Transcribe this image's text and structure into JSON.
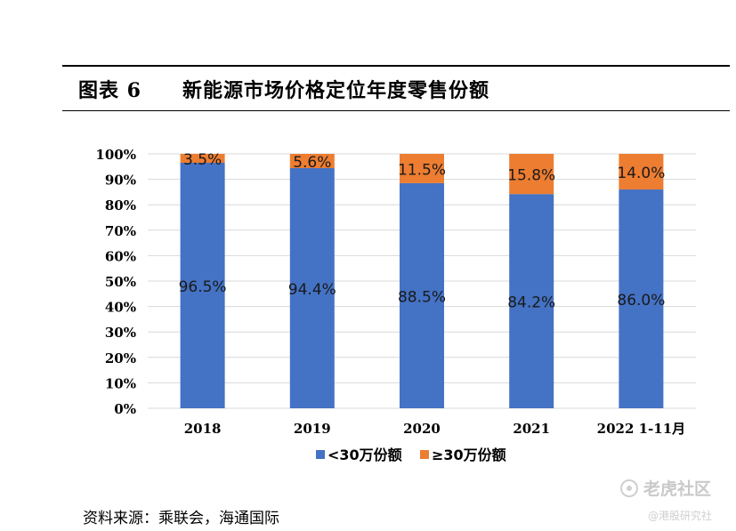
{
  "figure": {
    "label": "图表 6",
    "title": "新能源市场价格定位年度零售份额"
  },
  "source": "资料来源：乘联会，海通国际",
  "watermark": {
    "main": "老虎社区",
    "sub": "@港股研究社"
  },
  "colors": {
    "series_low": "#4472C4",
    "series_high": "#ED7D31",
    "grid": "#d9d9d9"
  },
  "chart_data": {
    "type": "bar",
    "stacked": true,
    "title": "",
    "xlabel": "",
    "ylabel": "",
    "ylim": [
      0,
      100
    ],
    "yticks": [
      "0%",
      "10%",
      "20%",
      "30%",
      "40%",
      "50%",
      "60%",
      "70%",
      "80%",
      "90%",
      "100%"
    ],
    "categories": [
      "2018",
      "2019",
      "2020",
      "2021",
      "2022 1-11月"
    ],
    "series": [
      {
        "name": "<30万份额",
        "values": [
          96.5,
          94.4,
          88.5,
          84.2,
          86.0
        ],
        "labels": [
          "96.5%",
          "94.4%",
          "88.5%",
          "84.2%",
          "86.0%"
        ]
      },
      {
        "name": "≥30万份额",
        "values": [
          3.5,
          5.6,
          11.5,
          15.8,
          14.0
        ],
        "labels": [
          "3.5%",
          "5.6%",
          "11.5%",
          "15.8%",
          "14.0%"
        ]
      }
    ],
    "grid": true,
    "legend_position": "bottom"
  }
}
